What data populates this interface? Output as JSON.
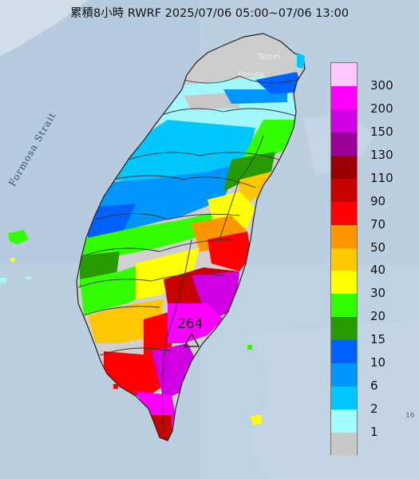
{
  "title": "累積8小時 RWRF 2025/07/06 05:00~07/06 13:00",
  "legend": {
    "labels": [
      "300",
      "200",
      "150",
      "130",
      "110",
      "90",
      "70",
      "50",
      "40",
      "30",
      "20",
      "15",
      "10",
      "6",
      "2",
      "1"
    ],
    "colors": [
      "#fdc8fb",
      "#fb00fb",
      "#d100e3",
      "#9b0099",
      "#9b0000",
      "#c70000",
      "#fe0000",
      "#fe9600",
      "#fec800",
      "#fefe00",
      "#32fe00",
      "#289b00",
      "#0062fe",
      "#0096fe",
      "#00c8fe",
      "#a0fefe",
      "#c8c8c8"
    ]
  },
  "map": {
    "max_value": "264",
    "places": {
      "taipei": "Taipei",
      "keelung": "Keelung"
    },
    "strait": "Formosa Strait",
    "edge_text": "16"
  }
}
